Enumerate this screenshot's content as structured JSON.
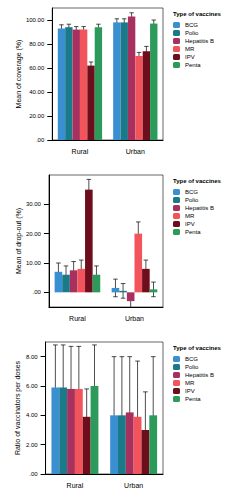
{
  "chart_data": [
    {
      "type": "bar",
      "y_label": "Mean of coverage (%)",
      "legend_title": "Type of vaccines",
      "legend": "right",
      "grid": false,
      "categories": [
        "Rural",
        "Urban"
      ],
      "ylim": [
        0,
        110
      ],
      "yticks": [
        {
          "value": 0,
          "label": ".00"
        },
        {
          "value": 20,
          "label": "20.00"
        },
        {
          "value": 40,
          "label": "40.00"
        },
        {
          "value": 60,
          "label": "60.00"
        },
        {
          "value": 80,
          "label": "80.00"
        },
        {
          "value": 100,
          "label": "100.00"
        }
      ],
      "series": [
        {
          "name": "BCG",
          "color": "#3a8fd0",
          "values": [
            93,
            98
          ],
          "errors": [
            3,
            3
          ]
        },
        {
          "name": "Polio",
          "color": "#1b7a8a",
          "values": [
            94,
            98
          ],
          "errors": [
            2.5,
            3
          ]
        },
        {
          "name": "Hepatitis B",
          "color": "#a8305e",
          "values": [
            92,
            103
          ],
          "errors": [
            2.5,
            3
          ]
        },
        {
          "name": "MR",
          "color": "#f2545b",
          "values": [
            92,
            70
          ],
          "errors": [
            2.5,
            3
          ]
        },
        {
          "name": "IPV",
          "color": "#6e0e1c",
          "values": [
            62,
            74
          ],
          "errors": [
            3,
            4
          ]
        },
        {
          "name": "Penta",
          "color": "#2c9a5a",
          "values": [
            94,
            97
          ],
          "errors": [
            2.5,
            3
          ]
        }
      ]
    },
    {
      "type": "bar",
      "y_label": "Mean of drop-out (%)",
      "legend_title": "Type of vaccines",
      "legend": "right",
      "grid": false,
      "categories": [
        "Rural",
        "Urban"
      ],
      "ylim": [
        -5,
        40
      ],
      "yticks": [
        {
          "value": 0,
          "label": ".00"
        },
        {
          "value": 10,
          "label": "10.00"
        },
        {
          "value": 20,
          "label": "20.00"
        },
        {
          "value": 30,
          "label": "30.00"
        }
      ],
      "series": [
        {
          "name": "BCG",
          "color": "#3a8fd0",
          "values": [
            7,
            1.5
          ],
          "errors": [
            3,
            3
          ]
        },
        {
          "name": "Polio",
          "color": "#1b7a8a",
          "values": [
            6,
            0.5
          ],
          "errors": [
            3,
            2.5
          ]
        },
        {
          "name": "Hepatitis B",
          "color": "#a8305e",
          "values": [
            7.5,
            -3
          ],
          "errors": [
            3,
            2.5
          ]
        },
        {
          "name": "MR",
          "color": "#f2545b",
          "values": [
            8,
            20
          ],
          "errors": [
            3,
            4
          ]
        },
        {
          "name": "IPV",
          "color": "#6e0e1c",
          "values": [
            35,
            8
          ],
          "errors": [
            3.5,
            3
          ]
        },
        {
          "name": "Penta",
          "color": "#2c9a5a",
          "values": [
            6,
            1
          ],
          "errors": [
            3,
            2.5
          ]
        }
      ]
    },
    {
      "type": "bar",
      "y_label": "Ratio of vaccinators per doses",
      "legend_title": "Type of vaccines",
      "legend": "right",
      "grid": false,
      "categories": [
        "Rural",
        "Urban"
      ],
      "ylim": [
        0,
        9
      ],
      "yticks": [
        {
          "value": 0,
          "label": ".00"
        },
        {
          "value": 2,
          "label": "2.00"
        },
        {
          "value": 4,
          "label": "4.00"
        },
        {
          "value": 6,
          "label": "6.00"
        },
        {
          "value": 8,
          "label": "8.00"
        }
      ],
      "series": [
        {
          "name": "BCG",
          "color": "#3a8fd0",
          "values": [
            5.9,
            4.0
          ],
          "errors": [
            2.9,
            4.0
          ]
        },
        {
          "name": "Polio",
          "color": "#1b7a8a",
          "values": [
            5.9,
            4.0
          ],
          "errors": [
            2.9,
            4.0
          ]
        },
        {
          "name": "Hepatitis B",
          "color": "#a8305e",
          "values": [
            5.8,
            4.2
          ],
          "errors": [
            2.9,
            3.8
          ]
        },
        {
          "name": "MR",
          "color": "#f2545b",
          "values": [
            5.8,
            3.9
          ],
          "errors": [
            2.9,
            3.8
          ]
        },
        {
          "name": "IPV",
          "color": "#6e0e1c",
          "values": [
            3.9,
            3.0
          ],
          "errors": [
            1.9,
            2.6
          ]
        },
        {
          "name": "Penta",
          "color": "#2c9a5a",
          "values": [
            6.0,
            4.0
          ],
          "errors": [
            2.8,
            4.0
          ]
        }
      ]
    }
  ]
}
